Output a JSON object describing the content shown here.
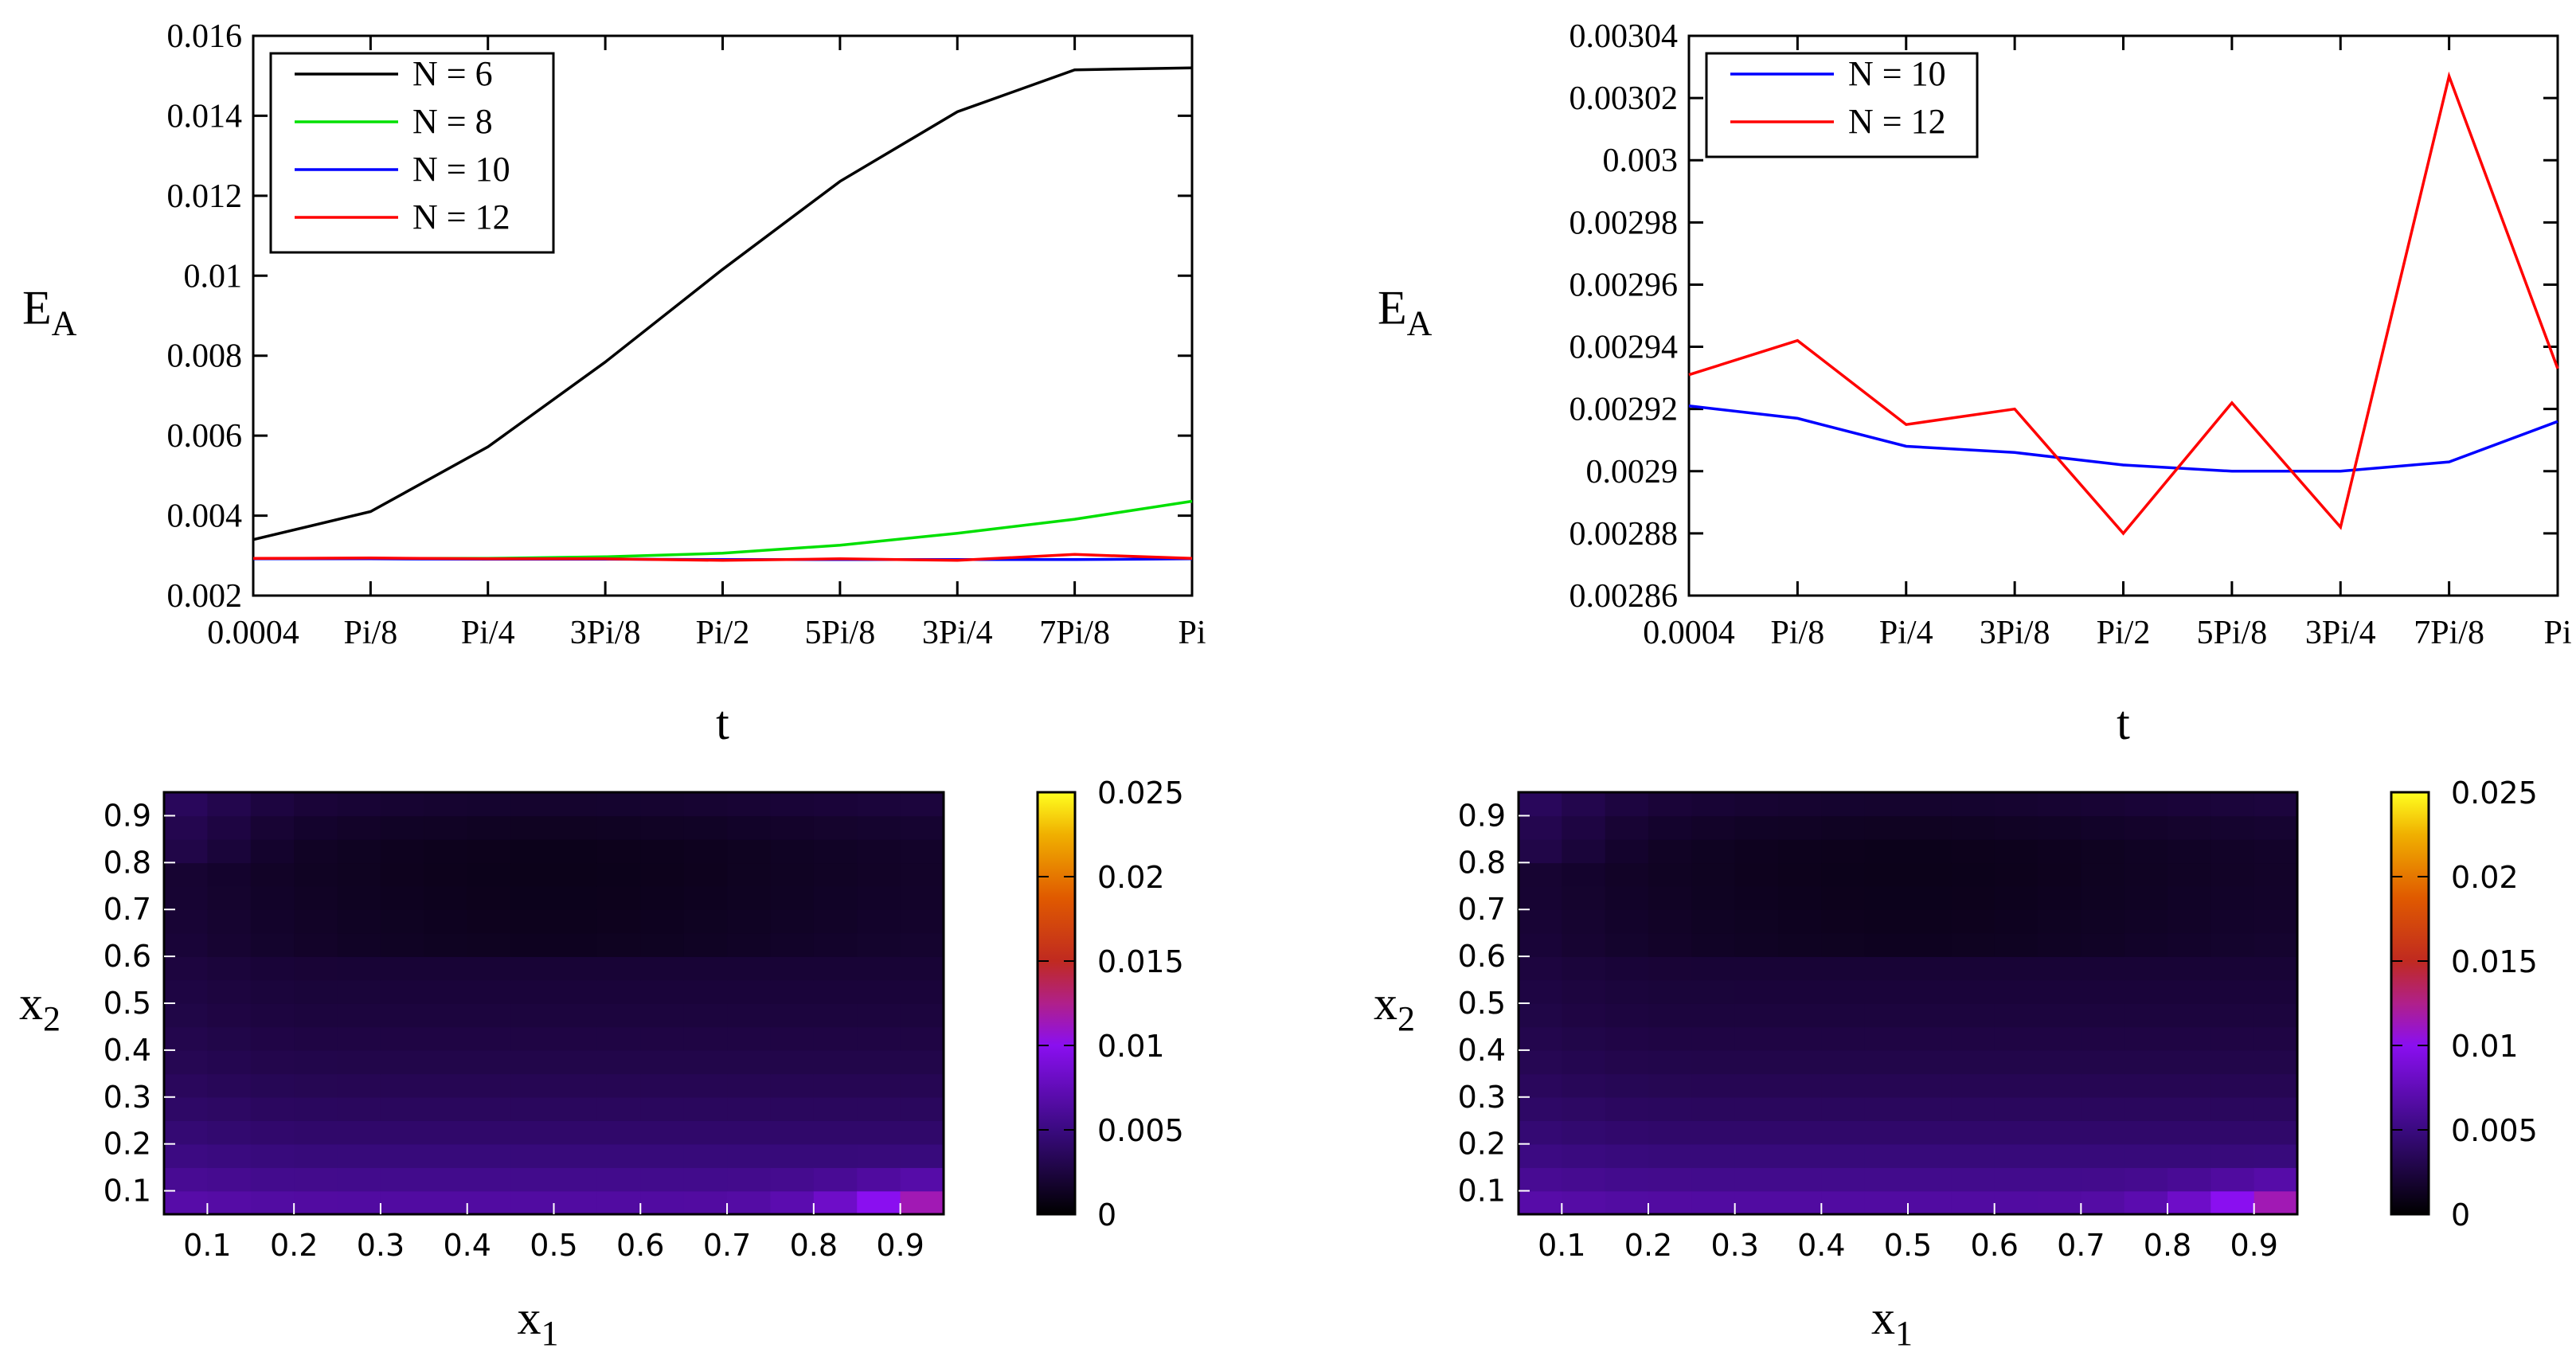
{
  "chart_data": [
    {
      "type": "line",
      "xlabel": "t",
      "ylabel": "E",
      "ylabel_sub": "A",
      "categories": [
        "0.0004",
        "Pi/8",
        "Pi/4",
        "3Pi/8",
        "Pi/2",
        "5Pi/8",
        "3Pi/4",
        "7Pi/8",
        "Pi"
      ],
      "ylim": [
        0.002,
        0.016
      ],
      "yticks": [
        "0.002",
        "0.004",
        "0.006",
        "0.008",
        "0.01",
        "0.012",
        "0.014",
        "0.016"
      ],
      "legend_position": "top-left",
      "series": [
        {
          "name": "N = 6",
          "color": "#000000",
          "values": [
            0.0034,
            0.0041,
            0.00572,
            0.00784,
            0.01016,
            0.01236,
            0.0141,
            0.01515,
            0.0152
          ]
        },
        {
          "name": "N = 8",
          "color": "#00e000",
          "values": [
            0.00292,
            0.00293,
            0.00293,
            0.00297,
            0.00306,
            0.00326,
            0.00356,
            0.00391,
            0.00436
          ]
        },
        {
          "name": "N = 10",
          "color": "#0000ff",
          "values": [
            0.00292,
            0.00292,
            0.00291,
            0.00291,
            0.0029,
            0.0029,
            0.0029,
            0.0029,
            0.00292
          ]
        },
        {
          "name": "N = 12",
          "color": "#ff0000",
          "values": [
            0.00293,
            0.00294,
            0.00292,
            0.00292,
            0.00288,
            0.00292,
            0.00288,
            0.00303,
            0.00293
          ]
        }
      ]
    },
    {
      "type": "line",
      "xlabel": "t",
      "ylabel": "E",
      "ylabel_sub": "A",
      "categories": [
        "0.0004",
        "Pi/8",
        "Pi/4",
        "3Pi/8",
        "Pi/2",
        "5Pi/8",
        "3Pi/4",
        "7Pi/8",
        "Pi"
      ],
      "ylim": [
        0.00286,
        0.00304
      ],
      "yticks": [
        "0.00286",
        "0.00288",
        "0.0029",
        "0.00292",
        "0.00294",
        "0.00296",
        "0.00298",
        "0.003",
        "0.00302",
        "0.00304"
      ],
      "legend_position": "top-left",
      "series": [
        {
          "name": "N = 10",
          "color": "#0000ff",
          "values": [
            0.002921,
            0.002917,
            0.002908,
            0.002906,
            0.002902,
            0.0029,
            0.0029,
            0.002903,
            0.002916
          ]
        },
        {
          "name": "N = 12",
          "color": "#ff0000",
          "values": [
            0.002931,
            0.002942,
            0.002915,
            0.00292,
            0.00288,
            0.002922,
            0.002882,
            0.003027,
            0.002933
          ]
        }
      ]
    },
    {
      "type": "heatmap",
      "xlabel": "x",
      "xlabel_sub": "1",
      "ylabel": "x",
      "ylabel_sub": "2",
      "xlim": [
        0.05,
        0.95
      ],
      "ylim": [
        0.05,
        0.95
      ],
      "xticks": [
        "0.1",
        "0.2",
        "0.3",
        "0.4",
        "0.5",
        "0.6",
        "0.7",
        "0.8",
        "0.9"
      ],
      "yticks": [
        "0.1",
        "0.2",
        "0.3",
        "0.4",
        "0.5",
        "0.6",
        "0.7",
        "0.8",
        "0.9"
      ],
      "colorbar_range": [
        0,
        0.025
      ],
      "colorbar_ticks": [
        "0",
        "0.005",
        "0.01",
        "0.015",
        "0.02",
        "0.025"
      ]
    },
    {
      "type": "heatmap",
      "xlabel": "x",
      "xlabel_sub": "1",
      "ylabel": "x",
      "ylabel_sub": "2",
      "xlim": [
        0.05,
        0.95
      ],
      "ylim": [
        0.05,
        0.95
      ],
      "xticks": [
        "0.1",
        "0.2",
        "0.3",
        "0.4",
        "0.5",
        "0.6",
        "0.7",
        "0.8",
        "0.9"
      ],
      "yticks": [
        "0.1",
        "0.2",
        "0.3",
        "0.4",
        "0.5",
        "0.6",
        "0.7",
        "0.8",
        "0.9"
      ],
      "colorbar_range": [
        0,
        0.025
      ],
      "colorbar_ticks": [
        "0",
        "0.005",
        "0.01",
        "0.015",
        "0.02",
        "0.025"
      ]
    }
  ]
}
